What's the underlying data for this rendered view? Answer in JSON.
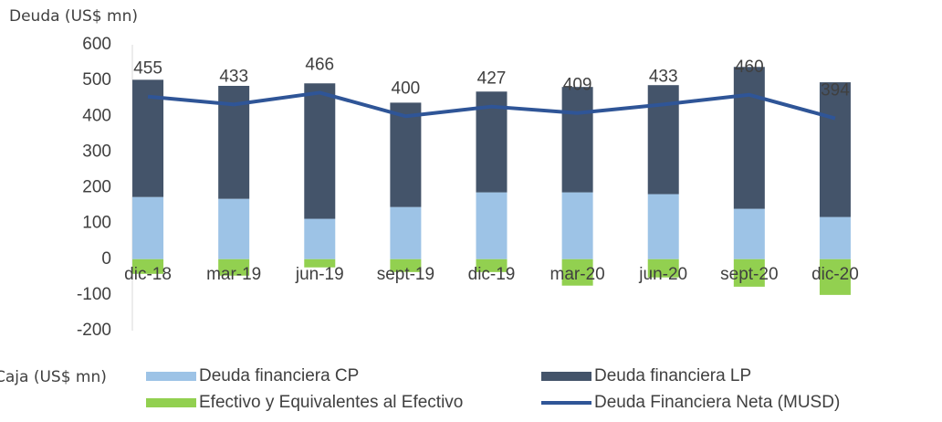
{
  "chart_data": {
    "type": "bar",
    "stacked": true,
    "y_label": "Deuda (US$ mn)",
    "y_label_negative": "Caja (US$ mn)",
    "categories": [
      "dic-18",
      "mar-19",
      "jun-19",
      "sept-19",
      "dic-19",
      "mar-20",
      "jun-20",
      "sept-20",
      "dic-20"
    ],
    "series": [
      {
        "name": "Deuda financiera CP",
        "type": "bar",
        "color": "#9dc3e6",
        "values": [
          174,
          169,
          113,
          146,
          187,
          187,
          182,
          141,
          118
        ]
      },
      {
        "name": "Deuda financiera LP",
        "type": "bar",
        "color": "#44546a",
        "values": [
          328,
          316,
          379,
          292,
          282,
          295,
          305,
          397,
          377
        ]
      },
      {
        "name": "Efectivo y Equivalentes al Efectivo",
        "type": "bar",
        "color": "#92d050",
        "values": [
          -41,
          -46,
          -23,
          -36,
          -36,
          -74,
          -51,
          -77,
          -100
        ]
      },
      {
        "name": "Deuda Financiera Neta (MUSD)",
        "type": "line",
        "color": "#2f5597",
        "values": [
          455,
          433,
          466,
          400,
          427,
          409,
          433,
          460,
          394
        ],
        "data_labels": true
      }
    ],
    "ylim": [
      -200,
      600
    ],
    "yticks": [
      -200,
      -100,
      0,
      100,
      200,
      300,
      400,
      500,
      600
    ],
    "grid": false
  }
}
